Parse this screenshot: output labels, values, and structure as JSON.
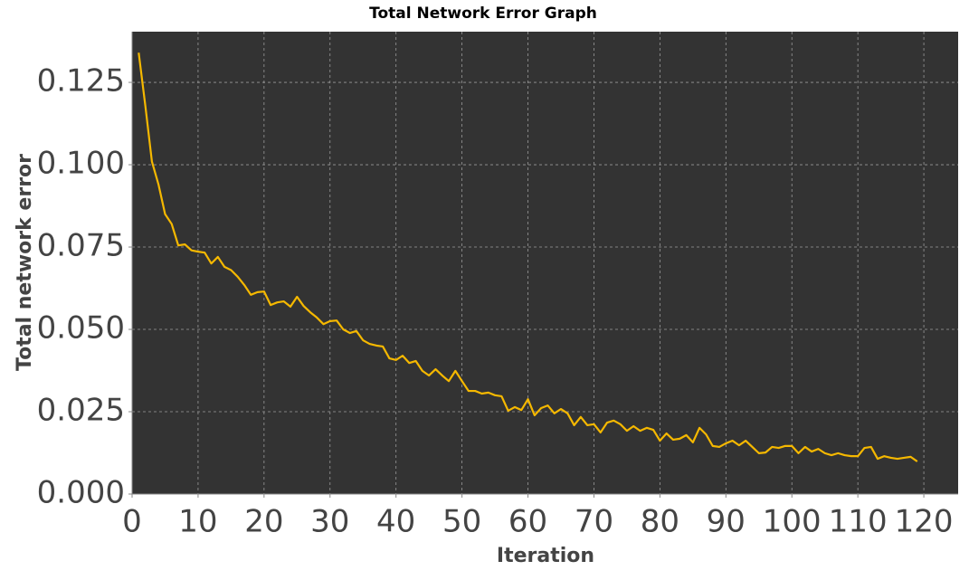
{
  "chart_data": {
    "type": "line",
    "title": "Total Network Error Graph",
    "x_label": "Iteration",
    "y_label": "Total network error",
    "x": [
      1,
      2,
      3,
      4,
      5,
      6,
      7,
      8,
      9,
      10,
      11,
      12,
      13,
      14,
      15,
      16,
      17,
      18,
      19,
      20,
      21,
      22,
      23,
      24,
      25,
      26,
      27,
      28,
      29,
      30,
      31,
      32,
      33,
      34,
      35,
      36,
      37,
      38,
      39,
      40,
      41,
      42,
      43,
      44,
      45,
      46,
      47,
      48,
      49,
      50,
      51,
      52,
      53,
      54,
      55,
      56,
      57,
      58,
      59,
      60,
      61,
      62,
      63,
      64,
      65,
      66,
      67,
      68,
      69,
      70,
      71,
      72,
      73,
      74,
      75,
      76,
      77,
      78,
      79,
      80,
      81,
      82,
      83,
      84,
      85,
      86,
      87,
      88,
      89,
      90,
      91,
      92,
      93,
      94,
      95,
      96,
      97,
      98,
      99,
      100,
      101,
      102,
      103,
      104,
      105,
      106,
      107,
      108,
      109,
      110,
      111,
      112,
      113,
      114,
      115,
      116,
      117,
      118,
      119
    ],
    "series": [
      {
        "name": "Total network error",
        "color": "#f5b800",
        "values": [
          0.134,
          0.118,
          0.101,
          0.094,
          0.085,
          0.082,
          0.0755,
          0.0758,
          0.074,
          0.0736,
          0.0733,
          0.07,
          0.072,
          0.069,
          0.068,
          0.066,
          0.0635,
          0.0605,
          0.0613,
          0.0615,
          0.0574,
          0.0582,
          0.0585,
          0.0569,
          0.0599,
          0.0571,
          0.0552,
          0.0536,
          0.0516,
          0.0525,
          0.0527,
          0.05,
          0.0489,
          0.0495,
          0.0467,
          0.0456,
          0.0451,
          0.0448,
          0.0412,
          0.0407,
          0.042,
          0.0398,
          0.0404,
          0.0374,
          0.036,
          0.0379,
          0.036,
          0.0343,
          0.0374,
          0.0343,
          0.0313,
          0.0313,
          0.0305,
          0.0308,
          0.03,
          0.0297,
          0.0253,
          0.0264,
          0.0255,
          0.0288,
          0.0239,
          0.0261,
          0.0269,
          0.0245,
          0.0258,
          0.0245,
          0.0209,
          0.0234,
          0.0209,
          0.0212,
          0.0187,
          0.0217,
          0.0223,
          0.0212,
          0.0192,
          0.0206,
          0.0192,
          0.0201,
          0.0195,
          0.0162,
          0.0184,
          0.0165,
          0.0168,
          0.0179,
          0.0157,
          0.0201,
          0.0181,
          0.0146,
          0.0143,
          0.0154,
          0.0162,
          0.0148,
          0.0162,
          0.0143,
          0.0124,
          0.0126,
          0.0143,
          0.014,
          0.0146,
          0.0146,
          0.0124,
          0.0143,
          0.0129,
          0.0137,
          0.0124,
          0.0118,
          0.0124,
          0.0118,
          0.0115,
          0.0115,
          0.014,
          0.0143,
          0.0107,
          0.0115,
          0.011,
          0.0107,
          0.011,
          0.0113,
          0.0099
        ]
      }
    ],
    "xlim": [
      0,
      125.2
    ],
    "ylim": [
      0,
      0.1404
    ],
    "xticks": [
      0,
      10,
      20,
      30,
      40,
      50,
      60,
      70,
      80,
      90,
      100,
      110,
      120
    ],
    "yticks": [
      {
        "value": 0,
        "label": "0.000"
      },
      {
        "value": 0.025,
        "label": "0.025"
      },
      {
        "value": 0.05,
        "label": "0.050"
      },
      {
        "value": 0.075,
        "label": "0.075"
      },
      {
        "value": 0.1,
        "label": "0.100"
      },
      {
        "value": 0.125,
        "label": "0.125"
      }
    ],
    "grid": true,
    "background": "#333333"
  }
}
